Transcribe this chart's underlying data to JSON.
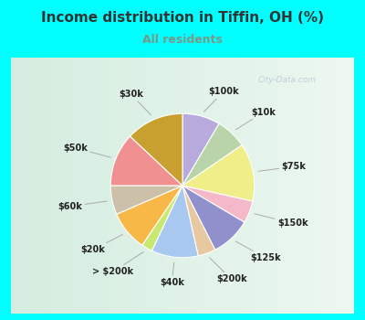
{
  "title": "Income distribution in Tiffin, OH (%)",
  "subtitle": "All residents",
  "title_color": "#333333",
  "subtitle_color": "#779988",
  "background_outer": "#00ffff",
  "background_inner": "#d8eee0",
  "watermark": "City-Data.com",
  "slices": [
    {
      "label": "$100k",
      "value": 8.5,
      "color": "#b8aadc"
    },
    {
      "label": "$10k",
      "value": 7.0,
      "color": "#b8d4a8"
    },
    {
      "label": "$75k",
      "value": 13.0,
      "color": "#f0ee88"
    },
    {
      "label": "$150k",
      "value": 5.0,
      "color": "#f4b8c8"
    },
    {
      "label": "$125k",
      "value": 9.0,
      "color": "#9090cc"
    },
    {
      "label": "$200k",
      "value": 4.0,
      "color": "#e8c8a0"
    },
    {
      "label": "$40k",
      "value": 10.5,
      "color": "#a8c8f0"
    },
    {
      "label": "> $200k",
      "value": 2.5,
      "color": "#c8e870"
    },
    {
      "label": "$20k",
      "value": 9.0,
      "color": "#f8b848"
    },
    {
      "label": "$60k",
      "value": 6.5,
      "color": "#ccc0a8"
    },
    {
      "label": "$50k",
      "value": 12.0,
      "color": "#f09090"
    },
    {
      "label": "$30k",
      "value": 13.0,
      "color": "#c8a030"
    }
  ]
}
